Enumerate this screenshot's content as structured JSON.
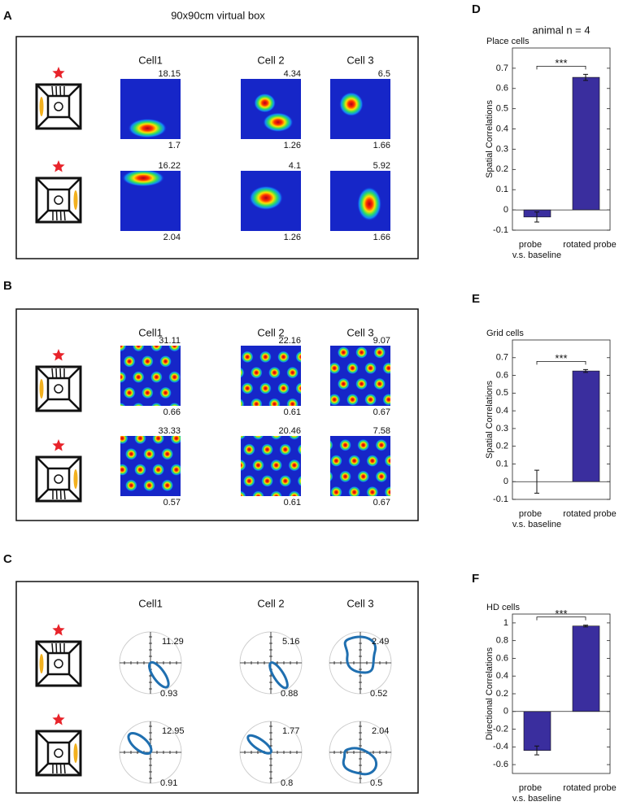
{
  "panels": [
    {
      "label": "A",
      "title": "90x90cm virtual box",
      "columns": [
        "Cell1",
        "Cell 2",
        "Cell 3"
      ],
      "rows": [
        {
          "max": [
            18.15,
            4.34,
            6.5
          ],
          "min": [
            1.7,
            1.26,
            1.66
          ]
        },
        {
          "max": [
            16.22,
            4.1,
            5.92
          ],
          "min": [
            2.04,
            1.26,
            1.66
          ]
        }
      ]
    },
    {
      "label": "B",
      "columns": [
        "Cell1",
        "Cell 2",
        "Cell 3"
      ],
      "rows": [
        {
          "max": [
            31.11,
            22.16,
            9.07
          ],
          "min": [
            0.66,
            0.61,
            0.67
          ]
        },
        {
          "max": [
            33.33,
            20.46,
            7.58
          ],
          "min": [
            0.57,
            0.61,
            0.67
          ]
        }
      ]
    },
    {
      "label": "C",
      "columns": [
        "Cell1",
        "Cell 2",
        "Cell 3"
      ],
      "rows": [
        {
          "max": [
            11.29,
            5.16,
            2.49
          ],
          "min": [
            0.93,
            0.88,
            0.52
          ]
        },
        {
          "max": [
            12.95,
            1.77,
            2.04
          ],
          "min": [
            0.91,
            0.8,
            0.5
          ]
        }
      ]
    }
  ],
  "header": "animal n = 4",
  "chart_data": [
    {
      "type": "bar",
      "panel_label": "D",
      "title": "Place cells",
      "categories": [
        "probe",
        "rotated probe"
      ],
      "values": [
        -0.035,
        0.655
      ],
      "errors": [
        0.025,
        0.015
      ],
      "color": "#3a2e9e",
      "ylim": [
        -0.1,
        0.8
      ],
      "yticks": [
        -0.1,
        0,
        0.1,
        0.2,
        0.3,
        0.4,
        0.5,
        0.6,
        0.7
      ],
      "ylabel": "Spatial Correlations",
      "xlabel": "v.s. baseline",
      "annotation": "***"
    },
    {
      "type": "bar",
      "panel_label": "E",
      "title": "Grid cells",
      "categories": [
        "probe",
        "rotated probe"
      ],
      "values": [
        0,
        0.625
      ],
      "errors": [
        0.065,
        0.008
      ],
      "color": "#3a2e9e",
      "ylim": [
        -0.1,
        0.8
      ],
      "yticks": [
        -0.1,
        0,
        0.1,
        0.2,
        0.3,
        0.4,
        0.5,
        0.6,
        0.7
      ],
      "ylabel": "Spatial Correlations",
      "xlabel": "v.s. baseline",
      "annotation": "***"
    },
    {
      "type": "bar",
      "panel_label": "F",
      "title": "HD cells",
      "categories": [
        "probe",
        "rotated probe"
      ],
      "values": [
        -0.44,
        0.965
      ],
      "errors": [
        0.05,
        0.01
      ],
      "color": "#3a2e9e",
      "ylim": [
        -0.7,
        1.1
      ],
      "yticks": [
        -0.6,
        -0.4,
        -0.2,
        0,
        0.2,
        0.4,
        0.6,
        0.8,
        1
      ],
      "ylabel": "Directional Correlations",
      "xlabel": "v.s. baseline",
      "annotation": "***"
    }
  ]
}
